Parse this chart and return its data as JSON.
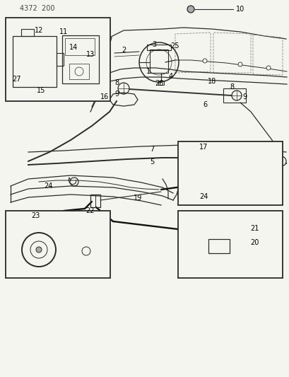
{
  "bg_color": "#f5f5f0",
  "page_id": "4372 200",
  "line_color": "#2a2a2a",
  "lw_main": 0.9,
  "lw_thick": 1.4,
  "lw_thin": 0.5
}
